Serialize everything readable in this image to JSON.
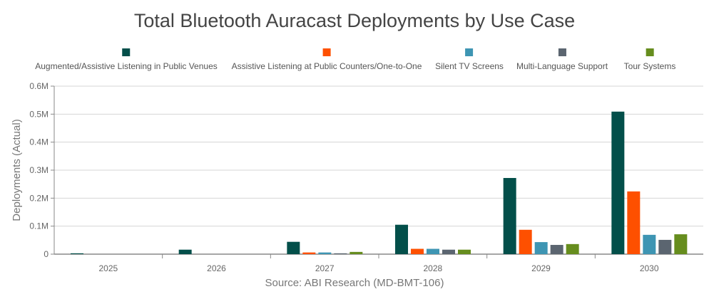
{
  "chart_data": {
    "type": "bar",
    "title": "Total Bluetooth Auracast Deployments by Use Case",
    "ylabel": "Deployments (Actual)",
    "xlabel": "",
    "source": "Source: ABI Research (MD-BMT-106)",
    "categories": [
      "2025",
      "2026",
      "2027",
      "2028",
      "2029",
      "2030"
    ],
    "ylim": [
      0,
      600000
    ],
    "yticks": [
      0,
      100000,
      200000,
      300000,
      400000,
      500000,
      600000
    ],
    "ytick_labels": [
      "0",
      "0.1M",
      "0.2M",
      "0.3M",
      "0.4M",
      "0.5M",
      "0.6M"
    ],
    "grid": true,
    "legend_position": "top",
    "series": [
      {
        "name": "Augmented/Assistive Listening in Public Venues",
        "color": "#034f4a",
        "values": [
          3000,
          16000,
          44000,
          105000,
          272000,
          509000
        ]
      },
      {
        "name": "Assistive Listening at Public Counters/One-to-One",
        "color": "#fe5000",
        "values": [
          0,
          0,
          6000,
          19000,
          87000,
          224000
        ]
      },
      {
        "name": "Silent TV Screens",
        "color": "#3e95b3",
        "values": [
          0,
          0,
          6000,
          19000,
          43000,
          69000
        ]
      },
      {
        "name": "Multi-Language Support",
        "color": "#5b6570",
        "values": [
          0,
          0,
          3000,
          16000,
          33000,
          51000
        ]
      },
      {
        "name": "Tour Systems",
        "color": "#668d1e",
        "values": [
          0,
          0,
          8000,
          16000,
          36000,
          71000
        ]
      }
    ]
  }
}
